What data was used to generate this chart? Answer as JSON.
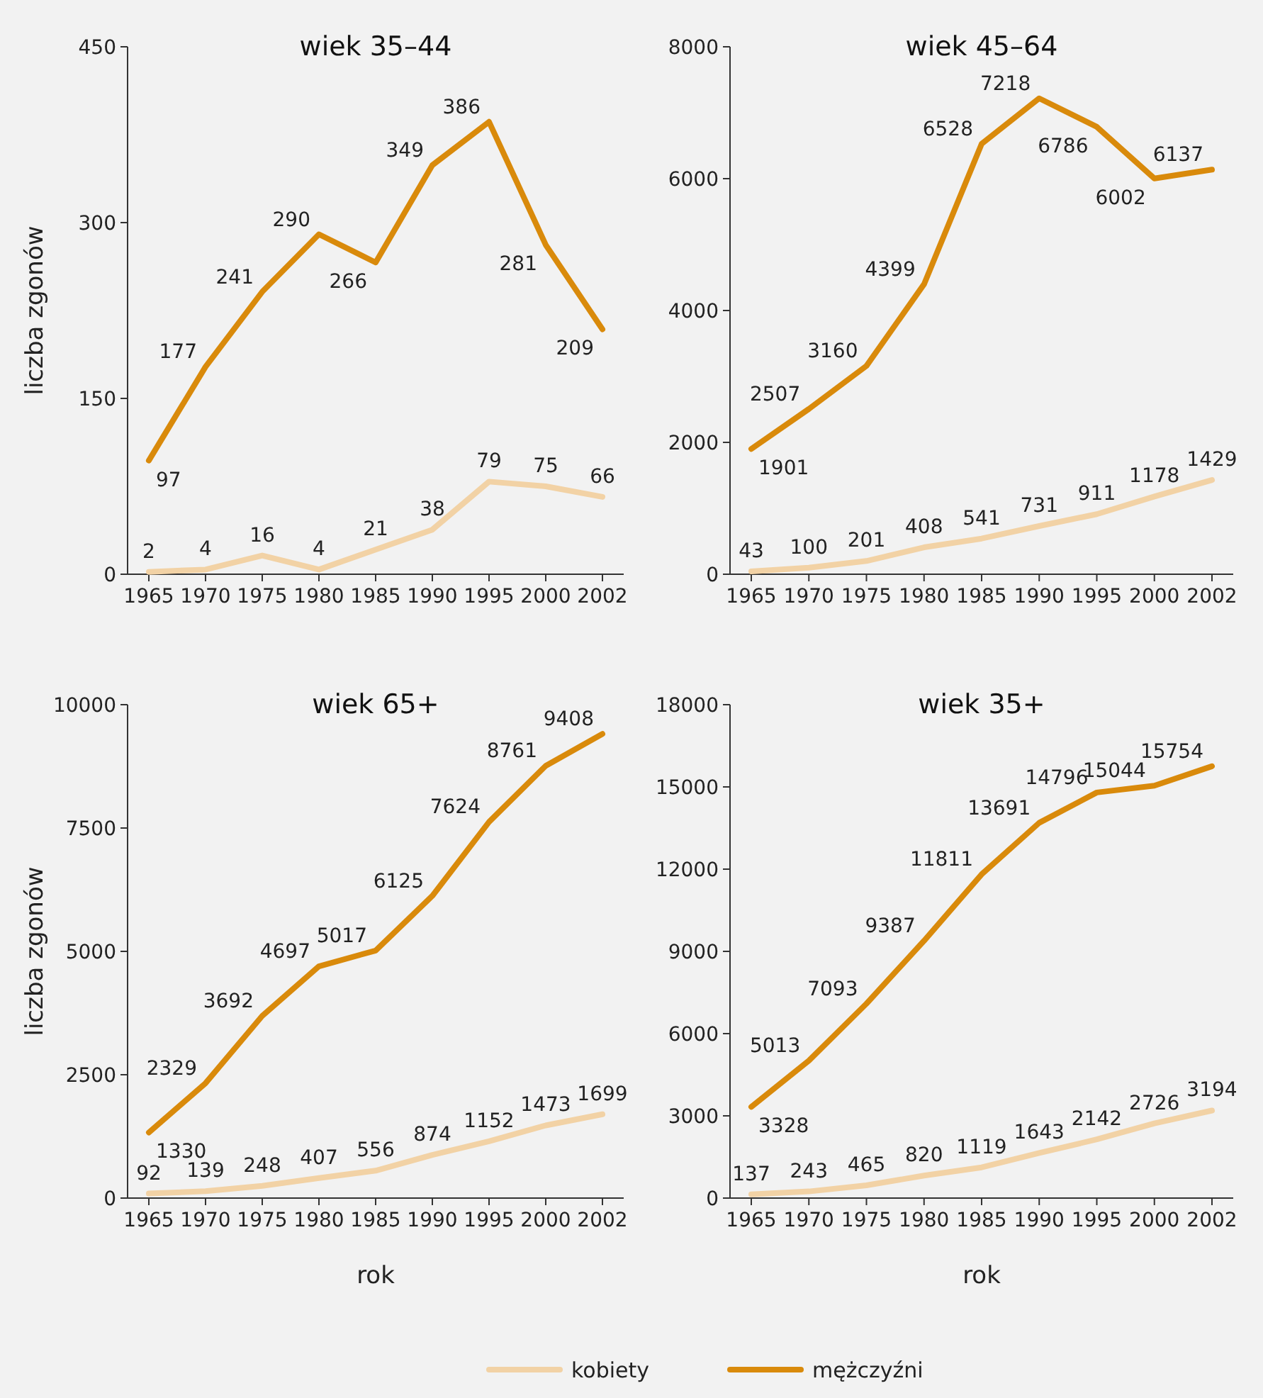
{
  "chart_data": [
    {
      "type": "line",
      "title": "wiek 35–44",
      "ylabel": "liczba zgonów",
      "categories": [
        "1965",
        "1970",
        "1975",
        "1980",
        "1985",
        "1990",
        "1995",
        "2000",
        "2002"
      ],
      "ylim": [
        0,
        450
      ],
      "yticks": [
        0,
        150,
        300,
        450
      ],
      "data_labels": true,
      "legend": "bottom",
      "series": [
        {
          "name": "kobiety",
          "color": "#f2d2a5",
          "values": [
            2,
            4,
            16,
            4,
            21,
            38,
            79,
            75,
            66
          ]
        },
        {
          "name": "mężczyźni",
          "color": "#d98a0b",
          "values": [
            97,
            177,
            241,
            290,
            266,
            349,
            386,
            281,
            209
          ]
        }
      ]
    },
    {
      "type": "line",
      "title": "wiek 45–64",
      "categories": [
        "1965",
        "1970",
        "1975",
        "1980",
        "1985",
        "1990",
        "1995",
        "2000",
        "2002"
      ],
      "ylim": [
        0,
        8000
      ],
      "yticks": [
        0,
        2000,
        4000,
        6000,
        8000
      ],
      "data_labels": true,
      "series": [
        {
          "color": "#f2d2a5",
          "values": [
            43,
            100,
            201,
            408,
            541,
            731,
            911,
            1178,
            1429
          ]
        },
        {
          "color": "#d98a0b",
          "values": [
            1901,
            2507,
            3160,
            4399,
            6528,
            7218,
            6786,
            6002,
            6137
          ]
        }
      ]
    },
    {
      "type": "line",
      "title": "wiek 65+",
      "ylabel": "liczba zgonów",
      "xlabel": "rok",
      "categories": [
        "1965",
        "1970",
        "1975",
        "1980",
        "1985",
        "1990",
        "1995",
        "2000",
        "2002"
      ],
      "ylim": [
        0,
        10000
      ],
      "yticks": [
        0,
        2500,
        5000,
        7500,
        10000
      ],
      "data_labels": true,
      "series": [
        {
          "color": "#f2d2a5",
          "values": [
            92,
            139,
            248,
            407,
            556,
            874,
            1152,
            1473,
            1699
          ]
        },
        {
          "color": "#d98a0b",
          "values": [
            1330,
            2329,
            3692,
            4697,
            5017,
            6125,
            7624,
            8761,
            9408
          ]
        }
      ]
    },
    {
      "type": "line",
      "title": "wiek 35+",
      "xlabel": "rok",
      "categories": [
        "1965",
        "1970",
        "1975",
        "1980",
        "1985",
        "1990",
        "1995",
        "2000",
        "2002"
      ],
      "ylim": [
        0,
        18000
      ],
      "yticks": [
        0,
        3000,
        6000,
        9000,
        12000,
        15000,
        18000
      ],
      "data_labels": true,
      "series": [
        {
          "color": "#f2d2a5",
          "values": [
            137,
            243,
            465,
            820,
            1119,
            1643,
            2142,
            2726,
            3194
          ]
        },
        {
          "color": "#d98a0b",
          "values": [
            3328,
            5013,
            7093,
            9387,
            11811,
            13691,
            14796,
            15044,
            15754
          ]
        }
      ]
    }
  ]
}
